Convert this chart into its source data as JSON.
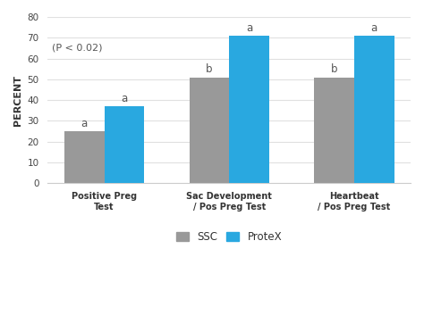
{
  "categories": [
    "Positive Preg\nTest",
    "Sac Development\n/ Pos Preg Test",
    "Heartbeat\n/ Pos Preg Test"
  ],
  "ssc_values": [
    25,
    51,
    51
  ],
  "protex_values": [
    37,
    71,
    71
  ],
  "ssc_color": "#999999",
  "protex_color": "#29a8e0",
  "ylim": [
    0,
    80
  ],
  "yticks": [
    0,
    10,
    20,
    30,
    40,
    50,
    60,
    70,
    80
  ],
  "ylabel": "PERCENT",
  "annotation_text": "(P < 0.02)",
  "bar_labels_ssc": [
    "a",
    "b",
    "b"
  ],
  "bar_labels_protex": [
    "a",
    "a",
    "a"
  ],
  "legend_ssc": "SSC",
  "legend_protex": "ProteX",
  "bar_width": 0.32,
  "background_color": "#ffffff",
  "plot_bg_color": "#ffffff",
  "grid_color": "#e0e0e0"
}
